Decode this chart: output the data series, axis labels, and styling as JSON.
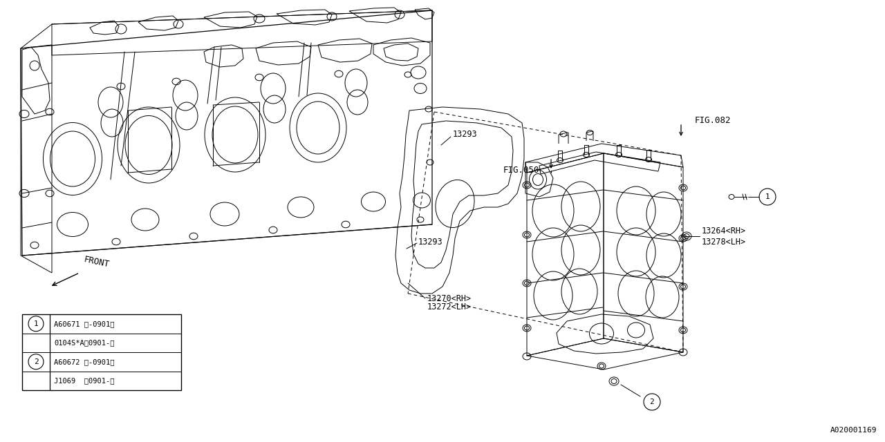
{
  "bg_color": "#ffffff",
  "line_color": "#000000",
  "fig_width": 12.8,
  "fig_height": 6.4,
  "dpi": 100,
  "labels": {
    "fig082": "FIG.082",
    "fig050": "FIG.050",
    "part_13293_upper": "13293",
    "part_13293_lower": "13293",
    "part_13270": "13270<RH>",
    "part_13272": "13272<LH>",
    "part_13264": "13264<RH>",
    "part_13278": "13278<LH>",
    "front": "FRONT",
    "legend_row1": "A60671 （-0901）",
    "legend_row2": "0104S*A（0901-）",
    "legend_row3": "A60672 （-0901）",
    "legend_row4": "J1069  （0901-）",
    "diagram_id": "A020001169"
  }
}
